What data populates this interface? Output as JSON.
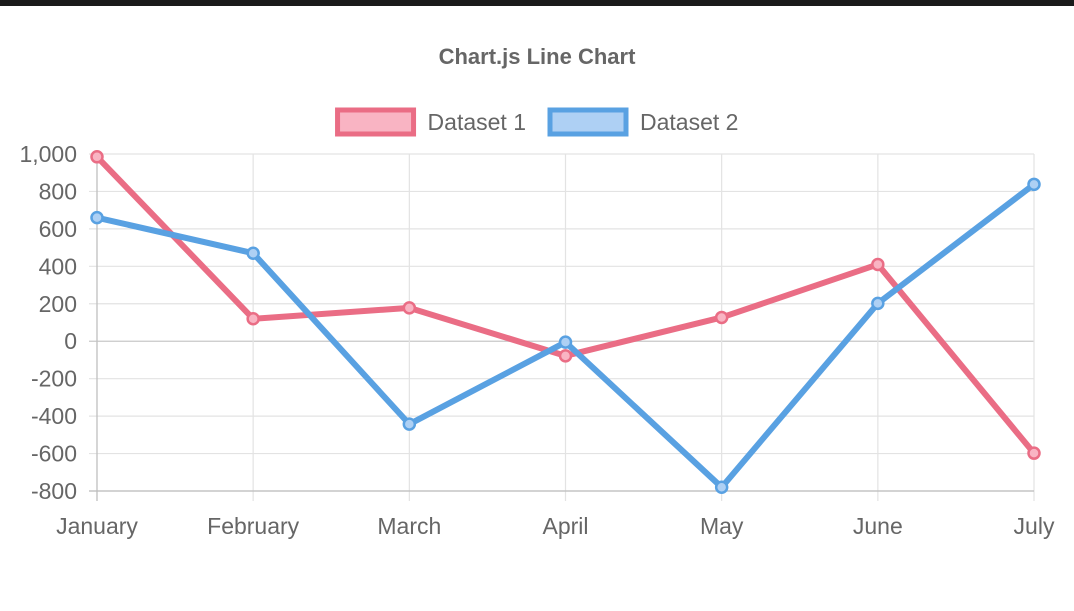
{
  "chart_data": {
    "type": "line",
    "title": "Chart.js Line Chart",
    "categories": [
      "January",
      "February",
      "March",
      "April",
      "May",
      "June",
      "July"
    ],
    "ylim": [
      -800,
      1000
    ],
    "yticks": [
      1000,
      800,
      600,
      400,
      200,
      0,
      -200,
      -400,
      -600,
      -800
    ],
    "ytick_labels": [
      "1,000",
      "800",
      "600",
      "400",
      "200",
      "0",
      "-200",
      "-400",
      "-600",
      "-800"
    ],
    "grid": true,
    "legend_position": "top",
    "series": [
      {
        "name": "Dataset 1",
        "values": [
          985,
          120,
          178,
          -78,
          127,
          410,
          -598
        ],
        "color": "#ea6d85",
        "fill": "#f9b4c3"
      },
      {
        "name": "Dataset 2",
        "values": [
          660,
          470,
          -443,
          -5,
          -780,
          202,
          838
        ],
        "color": "#59a1e2",
        "fill": "#aed0f4"
      }
    ]
  }
}
